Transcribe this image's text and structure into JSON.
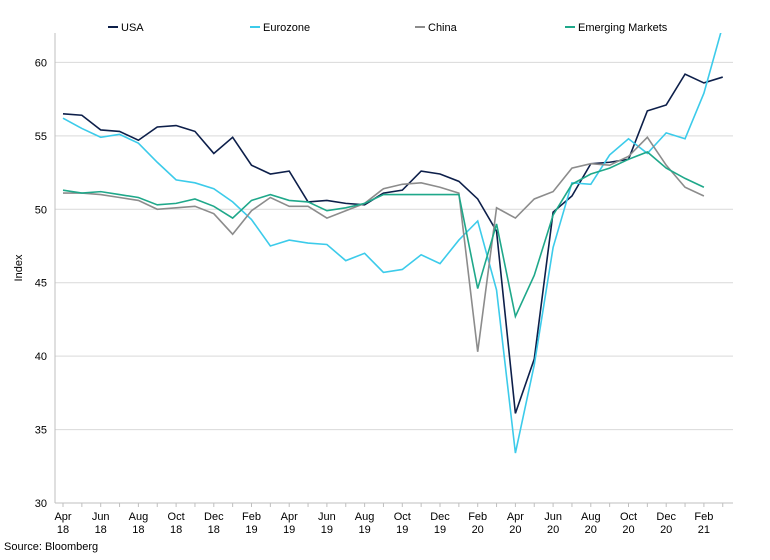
{
  "chart_data": {
    "type": "line",
    "y_label": "Index",
    "source": "Source: Bloomberg",
    "categories": [
      "Apr 18",
      null,
      "Jun 18",
      null,
      "Aug 18",
      null,
      "Oct 18",
      null,
      "Dec 18",
      null,
      "Feb 19",
      null,
      "Apr 19",
      null,
      "Jun 19",
      null,
      "Aug 19",
      null,
      "Oct 19",
      null,
      "Dec 19",
      null,
      "Feb 20",
      null,
      "Apr 20",
      null,
      "Jun 20",
      null,
      "Aug 20",
      null,
      "Oct 20",
      null,
      "Dec 20",
      null,
      "Feb 21",
      null
    ],
    "series": [
      {
        "name": "USA",
        "color": "#0d1f4a",
        "values": [
          56.5,
          56.4,
          55.4,
          55.3,
          54.7,
          55.6,
          55.7,
          55.3,
          53.8,
          54.9,
          53.0,
          52.4,
          52.6,
          50.5,
          50.6,
          50.4,
          50.3,
          51.1,
          51.3,
          52.6,
          52.4,
          51.9,
          50.7,
          48.5,
          36.1,
          39.8,
          49.8,
          50.9,
          53.1,
          53.2,
          53.4,
          56.7,
          57.1,
          59.2,
          58.6,
          59.0
        ]
      },
      {
        "name": "Eurozone",
        "color": "#3ccbea",
        "values": [
          56.2,
          55.5,
          54.9,
          55.1,
          54.5,
          53.2,
          52.0,
          51.8,
          51.4,
          50.5,
          49.3,
          47.5,
          47.9,
          47.7,
          47.6,
          46.5,
          47.0,
          45.7,
          45.9,
          46.9,
          46.3,
          47.9,
          49.2,
          44.5,
          33.4,
          39.4,
          47.4,
          51.8,
          51.7,
          53.7,
          54.8,
          53.8,
          55.2,
          54.8,
          57.9,
          62.5
        ]
      },
      {
        "name": "China",
        "color": "#8c8c8c",
        "values": [
          51.1,
          51.1,
          51.0,
          50.8,
          50.6,
          50.0,
          50.1,
          50.2,
          49.7,
          48.3,
          49.9,
          50.8,
          50.2,
          50.2,
          49.4,
          49.9,
          50.4,
          51.4,
          51.7,
          51.8,
          51.5,
          51.1,
          40.3,
          50.1,
          49.4,
          50.7,
          51.2,
          52.8,
          53.1,
          53.0,
          53.6,
          54.9,
          53.0,
          51.5,
          50.9,
          null
        ]
      },
      {
        "name": "Emerging Markets",
        "color": "#1fa88a",
        "values": [
          51.3,
          51.1,
          51.2,
          51.0,
          50.8,
          50.3,
          50.4,
          50.7,
          50.2,
          49.4,
          50.6,
          51.0,
          50.6,
          50.5,
          49.9,
          50.1,
          50.4,
          51.0,
          51.0,
          51.0,
          51.0,
          51.0,
          44.6,
          49.0,
          42.7,
          45.5,
          49.6,
          51.7,
          52.4,
          52.8,
          53.4,
          53.9,
          52.8,
          52.1,
          51.5,
          null
        ]
      }
    ],
    "ylim": [
      30,
      62
    ],
    "yticks": [
      30,
      35,
      40,
      45,
      50,
      55,
      60
    ],
    "grid": true,
    "legend": "top"
  }
}
